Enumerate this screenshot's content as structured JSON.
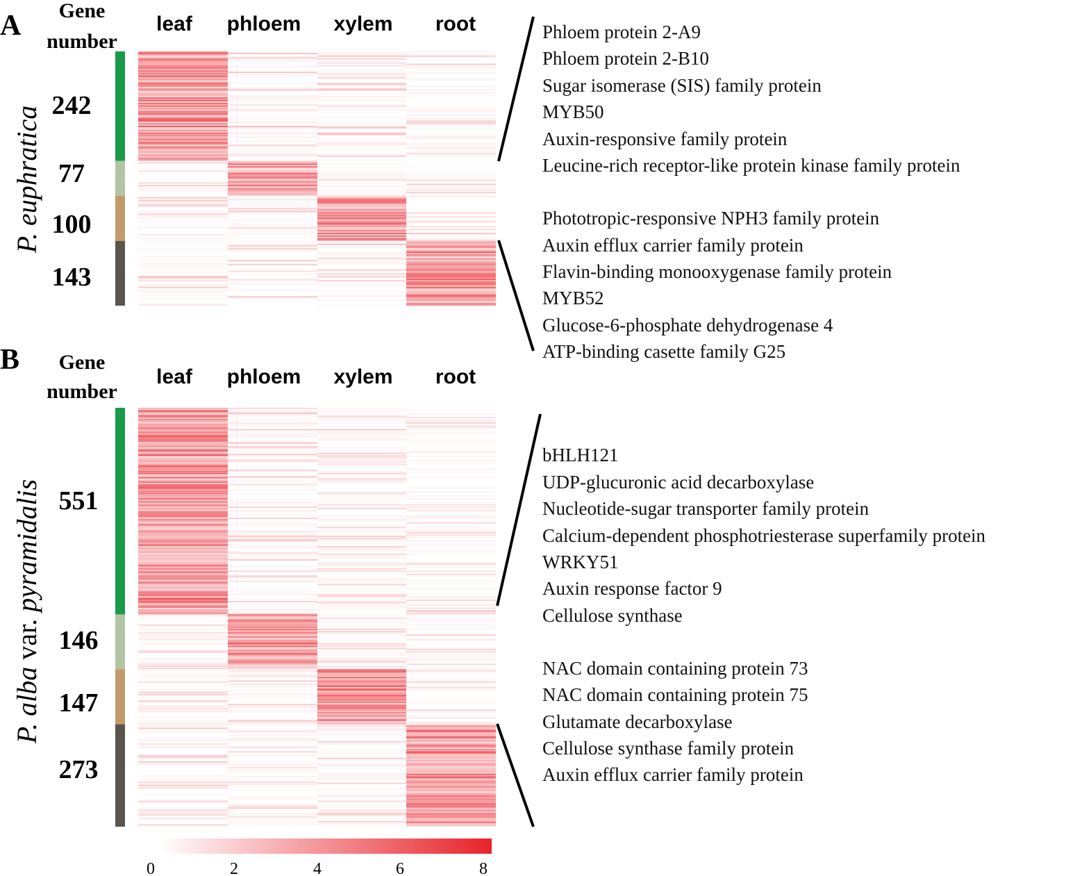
{
  "colors": {
    "leaf_cluster": "#1a9a4a",
    "phloem_cluster": "#b3c4a4",
    "xylem_cluster": "#c49a6c",
    "root_cluster": "#5a544f",
    "heat_low": "#ffffff",
    "heat_high": "#e8232b"
  },
  "chart_data": [
    {
      "type": "heatmap",
      "panel": "A",
      "gene_number_header": [
        "Gene",
        "number"
      ],
      "species_label": "P. euphratica",
      "columns": [
        "leaf",
        "phloem",
        "xylem",
        "root"
      ],
      "clusters": [
        {
          "tissue": "leaf",
          "genes": 242,
          "label": "242"
        },
        {
          "tissue": "phloem",
          "genes": 77,
          "label": "77"
        },
        {
          "tissue": "xylem",
          "genes": 100,
          "label": "100"
        },
        {
          "tissue": "root",
          "genes": 143,
          "label": "143"
        }
      ],
      "annotations": [
        {
          "cluster": "leaf",
          "genes": [
            "Phloem protein 2-A9",
            "Phloem protein 2-B10",
            "Sugar isomerase (SIS) family protein",
            "MYB50",
            "Auxin-responsive family protein",
            "Leucine-rich receptor-like protein kinase family protein"
          ]
        },
        {
          "cluster": "root",
          "genes": [
            "Phototropic-responsive NPH3 family protein",
            "Auxin efflux carrier family protein",
            "Flavin-binding monooxygenase family protein",
            "MYB52",
            "Glucose-6-phosphate dehydrogenase 4",
            "ATP-binding casette family G25"
          ]
        }
      ],
      "value_range": [
        0,
        8
      ]
    },
    {
      "type": "heatmap",
      "panel": "B",
      "gene_number_header": [
        "Gene",
        "number"
      ],
      "species_label_parts": [
        "P. alba",
        " var. ",
        "pyramidalis"
      ],
      "columns": [
        "leaf",
        "phloem",
        "xylem",
        "root"
      ],
      "clusters": [
        {
          "tissue": "leaf",
          "genes": 551,
          "label": "551"
        },
        {
          "tissue": "phloem",
          "genes": 146,
          "label": "146"
        },
        {
          "tissue": "xylem",
          "genes": 147,
          "label": "147"
        },
        {
          "tissue": "root",
          "genes": 273,
          "label": "273"
        }
      ],
      "annotations": [
        {
          "cluster": "leaf",
          "genes": [
            "bHLH121",
            "UDP-glucuronic acid decarboxylase",
            "Nucleotide-sugar transporter family protein",
            "Calcium-dependent phosphotriesterase superfamily protein",
            "WRKY51",
            "Auxin response factor 9",
            "Cellulose synthase"
          ]
        },
        {
          "cluster": "root",
          "genes": [
            "NAC domain containing protein 73",
            "NAC domain containing protein 75",
            "Glutamate decarboxylase",
            "Cellulose synthase family protein",
            "Auxin efflux carrier family protein"
          ]
        }
      ],
      "value_range": [
        0,
        8
      ]
    }
  ],
  "colorbar": {
    "min": 0,
    "max": 8,
    "ticks": [
      0,
      2,
      4,
      6,
      8
    ],
    "tick_labels": [
      "0",
      "2",
      "4",
      "6",
      "8"
    ]
  }
}
